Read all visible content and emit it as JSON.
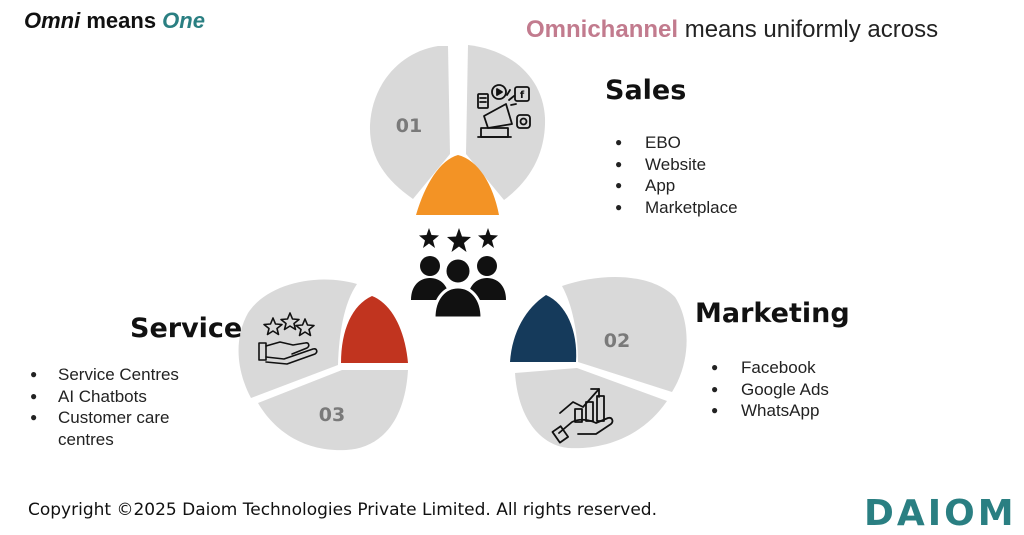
{
  "header": {
    "title_part1": "Omni",
    "title_part2": " means ",
    "title_part3": "One",
    "subtitle_highlight": "Omnichannel",
    "subtitle_rest": " means uniformly across"
  },
  "segments": [
    {
      "number": "01",
      "heading": "Sales",
      "items": [
        "EBO",
        "Website",
        "App",
        "Marketplace"
      ],
      "icon": "megaphone-social-icon",
      "accent_color": "#f39325"
    },
    {
      "number": "02",
      "heading": "Marketing",
      "items": [
        "Facebook",
        "Google Ads",
        "WhatsApp"
      ],
      "icon": "growth-chart-hand-icon",
      "accent_color": "#153a5b"
    },
    {
      "number": "03",
      "heading": "Service",
      "items": [
        "Service Centres",
        "AI Chatbots",
        "Customer care centres"
      ],
      "icon": "hand-stars-icon",
      "accent_color": "#c1341f"
    }
  ],
  "center_icon": "customers-rating-icon",
  "segment_color": "#d9d9d9",
  "footer": {
    "copyright": "Copyright ©2025 Daiom Technologies Private Limited. All rights reserved.",
    "logo": "DAIOM"
  }
}
